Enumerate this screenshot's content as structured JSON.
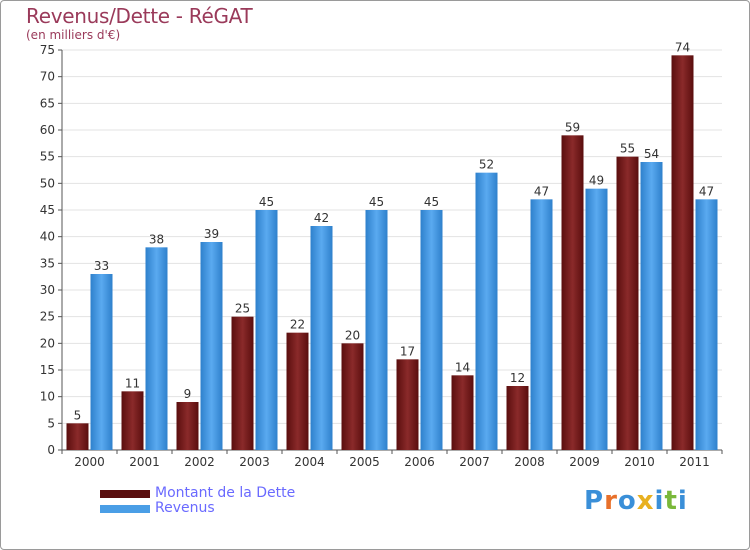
{
  "header": {
    "title": "Revenus/Dette - RéGAT",
    "subtitle": "(en milliers d'€)"
  },
  "chart_data": {
    "type": "bar",
    "categories": [
      "2000",
      "2001",
      "2002",
      "2003",
      "2004",
      "2005",
      "2006",
      "2007",
      "2008",
      "2009",
      "2010",
      "2011"
    ],
    "series": [
      {
        "name": "Montant de la Dette",
        "values": [
          5,
          11,
          9,
          25,
          22,
          20,
          17,
          14,
          12,
          59,
          55,
          74
        ],
        "color": "#7a1f1f"
      },
      {
        "name": "Revenus",
        "values": [
          33,
          38,
          39,
          45,
          42,
          45,
          45,
          52,
          47,
          49,
          54,
          47
        ],
        "color": "#4a9ee6"
      }
    ],
    "ylim": [
      0,
      75
    ],
    "yticks": [
      0,
      5,
      10,
      15,
      20,
      25,
      30,
      35,
      40,
      45,
      50,
      55,
      60,
      65,
      70,
      75
    ],
    "grid": true,
    "legend_position": "bottom-left"
  },
  "legend": {
    "items": [
      {
        "label": "Montant de la Dette",
        "color": "#5a0e0e"
      },
      {
        "label": "Revenus",
        "color": "#4a9ee6"
      }
    ]
  },
  "logo": {
    "letters": [
      "P",
      "r",
      "o",
      "x",
      "i",
      "t",
      "i"
    ],
    "colors": [
      "#3a8fd8",
      "#e8702a",
      "#3a8fd8",
      "#e8b020",
      "#3a8fd8",
      "#7ab83a",
      "#3a8fd8"
    ]
  }
}
